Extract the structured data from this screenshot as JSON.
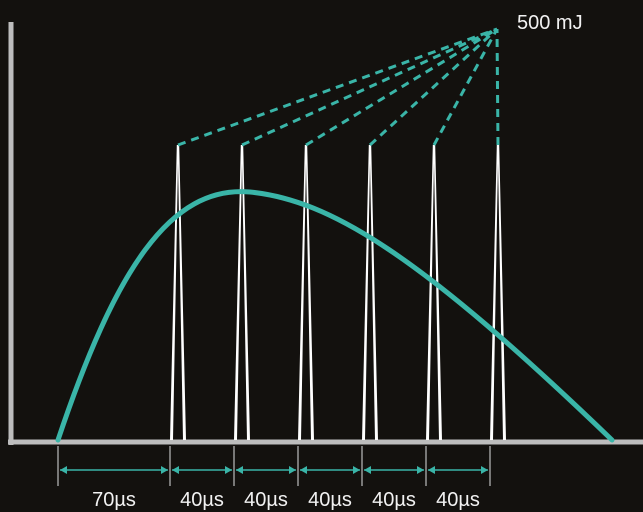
{
  "energy_label": "500 mJ",
  "intervals": [
    {
      "label": "70µs",
      "duration_us": 70
    },
    {
      "label": "40µs",
      "duration_us": 40
    },
    {
      "label": "40µs",
      "duration_us": 40
    },
    {
      "label": "40µs",
      "duration_us": 40
    },
    {
      "label": "40µs",
      "duration_us": 40
    },
    {
      "label": "40µs",
      "duration_us": 40
    }
  ],
  "pulse_count": 6,
  "colors": {
    "background": "#13110e",
    "envelope": "#3ab5a8",
    "pulse": "#ffffff",
    "axis": "#bdbdbd",
    "dimension": "#3ab5a8"
  }
}
